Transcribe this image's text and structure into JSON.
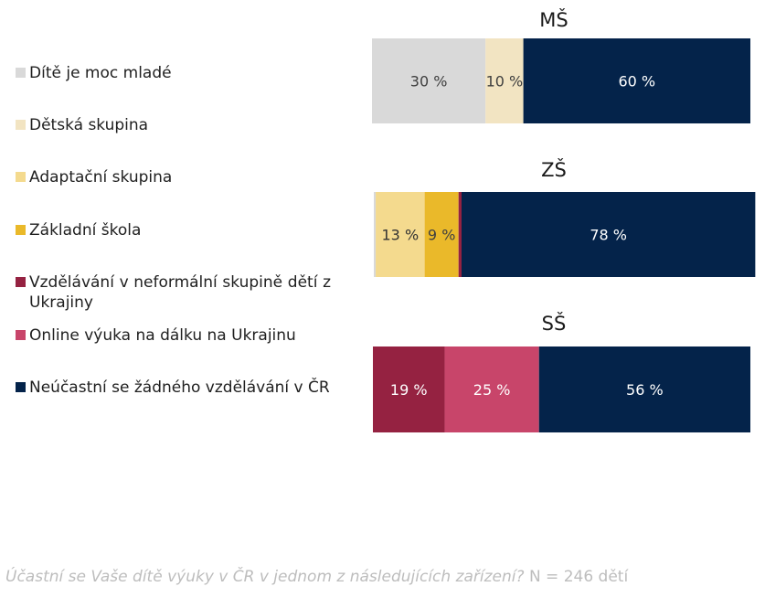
{
  "chart_data": {
    "type": "bar",
    "orientation": "horizontal",
    "stacked": true,
    "legend_position": "left",
    "categories": [
      "Dítě je moc mladé",
      "Dětská skupina",
      "Adaptační skupina",
      "Základní škola",
      "Vzdělávání v neformální skupině dětí z Ukrajiny",
      "Online výuka na dálku na Ukrajinu",
      "Neúčastní se žádného vzdělávání v ČR"
    ],
    "colors": [
      "#d9d9d9",
      "#f2e4c2",
      "#f4da8e",
      "#eab92a",
      "#952241",
      "#c8456a",
      "#04234a"
    ],
    "label_colors": [
      "#404040",
      "#404040",
      "#333333",
      "#404040",
      "#ffffff",
      "#ffffff",
      "#ffffff"
    ],
    "panels": [
      {
        "title": "MŠ",
        "values": [
          30,
          10,
          0,
          0,
          0,
          0,
          60
        ],
        "labels": [
          "30 %",
          "10 %",
          "",
          "",
          "",
          "",
          "60 %"
        ]
      },
      {
        "title": "ZŠ",
        "values": [
          0.5,
          0,
          13,
          9,
          0.8,
          0,
          78
        ],
        "labels": [
          "",
          "",
          "13 %",
          "9 %",
          "",
          "",
          "78 %"
        ]
      },
      {
        "title": "SŠ",
        "values": [
          0,
          0,
          0,
          0,
          19,
          25,
          56
        ],
        "labels": [
          "",
          "",
          "",
          "",
          "19 %",
          "25 %",
          "56 %"
        ]
      }
    ]
  },
  "footer": {
    "question": "Účastní se Vaše dítě výuky v ČR v jednom z následujících zařízení?",
    "sample": "N = 246 dětí"
  }
}
